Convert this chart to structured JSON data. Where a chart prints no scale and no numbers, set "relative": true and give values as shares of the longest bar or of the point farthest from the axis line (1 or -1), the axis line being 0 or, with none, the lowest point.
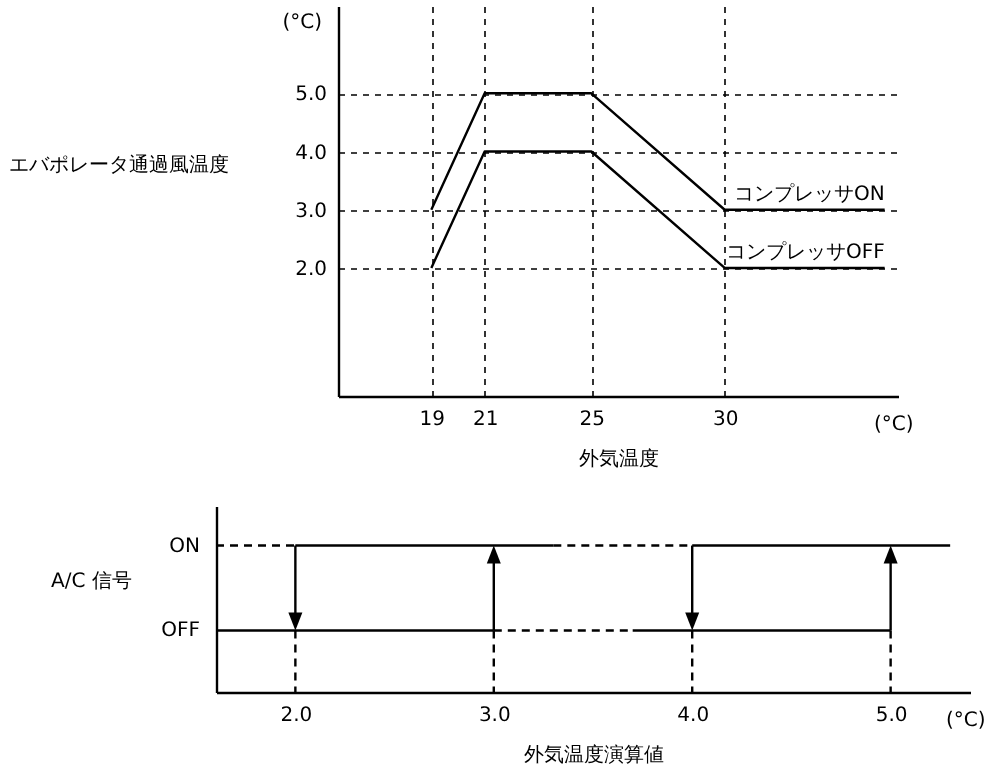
{
  "chart_data": [
    {
      "type": "line",
      "ylabel": "エバポレータ通過風温度",
      "xlabel": "外気温度",
      "annotations": [
        "(°C)",
        "(°C)"
      ],
      "xlim": [
        15.5,
        36.5
      ],
      "xticks": [
        19,
        21,
        25,
        30
      ],
      "ylim": [
        -0.2,
        6.5
      ],
      "yticks": [
        {
          "value": 2,
          "label": "2.0"
        },
        {
          "value": 3,
          "label": "3.0"
        },
        {
          "value": 4,
          "label": "4.0"
        },
        {
          "value": 5,
          "label": "5.0"
        }
      ],
      "grid": true,
      "series": [
        {
          "name": "コンプレッサON",
          "color": "#000000",
          "x": [
            19,
            21,
            25,
            30,
            36
          ],
          "values": [
            3,
            5,
            5,
            3,
            3
          ]
        },
        {
          "name": "コンプレッサOFF",
          "color": "#000000",
          "x": [
            19,
            21,
            25,
            30,
            36
          ],
          "values": [
            2,
            4,
            4,
            2,
            2
          ]
        }
      ]
    },
    {
      "type": "line",
      "relative": true,
      "ylabel": "A/C 信号",
      "xlabel": "外気温度演算値",
      "annotations": [
        "ON",
        "OFF",
        "(°C)"
      ],
      "xlim": [
        1.6,
        5.4
      ],
      "xticks": [
        {
          "value": 2,
          "label": "2.0"
        },
        {
          "value": 3,
          "label": "3.0"
        },
        {
          "value": 4,
          "label": "4.0"
        },
        {
          "value": 5,
          "label": "5.0"
        }
      ],
      "series": [
        {
          "color": "#000000",
          "x": [
            1.6,
            3
          ],
          "values": [
            0.42,
            0.42
          ]
        },
        {
          "color": "#000000",
          "x": [
            2,
            3.3
          ],
          "values": [
            1,
            1
          ]
        },
        {
          "color": "#000000",
          "x": [
            3.7,
            5
          ],
          "values": [
            0.42,
            0.42
          ]
        },
        {
          "color": "#000000",
          "x": [
            4,
            5.3
          ],
          "values": [
            1,
            1
          ]
        },
        {
          "color": "#000000",
          "line_style": "dashed",
          "x": [
            1.6,
            2
          ],
          "values": [
            1,
            1
          ]
        },
        {
          "color": "#000000",
          "line_style": "dashed",
          "x": [
            3.3,
            4
          ],
          "values": [
            1,
            1
          ]
        },
        {
          "color": "#000000",
          "line_style": "dashed",
          "x": [
            3,
            3.7
          ],
          "values": [
            0.42,
            0.42
          ]
        },
        {
          "color": "#000000",
          "line_style": "dashed",
          "x": [
            2,
            2
          ],
          "values": [
            0.42,
            0
          ]
        },
        {
          "color": "#000000",
          "line_style": "dashed",
          "x": [
            3,
            3
          ],
          "values": [
            0.42,
            0
          ]
        },
        {
          "color": "#000000",
          "line_style": "dashed",
          "x": [
            4,
            4
          ],
          "values": [
            0.42,
            0
          ]
        },
        {
          "color": "#000000",
          "line_style": "dashed",
          "x": [
            5,
            5
          ],
          "values": [
            0.42,
            0
          ]
        }
      ]
    }
  ]
}
